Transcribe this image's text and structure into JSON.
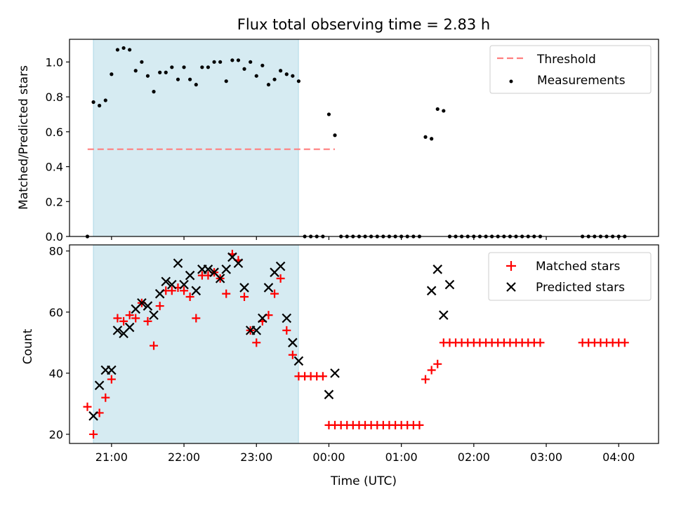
{
  "chart_data": [
    {
      "type": "scatter",
      "title": "Flux total observing time = 2.83 h",
      "ylabel": "Matched/Predicted stars",
      "xlabel": "",
      "ylim": [
        0,
        1.13
      ],
      "yticks": [
        "0.0",
        "0.2",
        "0.4",
        "0.6",
        "0.8",
        "1.0"
      ],
      "grid": false,
      "legend_position": "top-right",
      "shaded_region": {
        "x_start": 20.75,
        "x_end": 23.58,
        "color": "#add8e6"
      },
      "threshold": {
        "name": "Threshold",
        "value": 0.5,
        "x_start": 20.67,
        "x_end": 24.083,
        "color": "#ff7f7f"
      },
      "series": [
        {
          "name": "Measurements",
          "color": "#000000",
          "x": [
            20.667,
            20.75,
            20.833,
            20.917,
            21.0,
            21.083,
            21.167,
            21.25,
            21.333,
            21.417,
            21.5,
            21.583,
            21.667,
            21.75,
            21.833,
            21.917,
            22.0,
            22.083,
            22.167,
            22.25,
            22.333,
            22.417,
            22.5,
            22.583,
            22.667,
            22.75,
            22.833,
            22.917,
            23.0,
            23.083,
            23.167,
            23.25,
            23.333,
            23.417,
            23.5,
            23.583,
            23.667,
            23.75,
            23.833,
            23.917,
            24.0,
            24.083,
            24.167,
            24.25,
            24.333,
            24.417,
            24.5,
            24.583,
            24.667,
            24.75,
            24.833,
            24.917,
            25.0,
            25.083,
            25.167,
            25.25,
            25.333,
            25.417,
            25.5,
            25.583,
            25.667,
            25.75,
            25.833,
            25.917,
            26.0,
            26.083,
            26.167,
            26.25,
            26.333,
            26.417,
            26.5,
            26.583,
            26.667,
            26.75,
            26.833,
            26.917,
            27.5,
            27.583,
            27.667,
            27.75,
            27.833,
            27.917,
            28.0,
            28.083
          ],
          "y": [
            0.0,
            0.77,
            0.75,
            0.78,
            0.93,
            1.07,
            1.08,
            1.07,
            0.95,
            1.0,
            0.92,
            0.83,
            0.94,
            0.94,
            0.97,
            0.9,
            0.97,
            0.9,
            0.87,
            0.97,
            0.97,
            1.0,
            1.0,
            0.89,
            1.01,
            1.01,
            0.96,
            1.0,
            0.92,
            0.98,
            0.87,
            0.9,
            0.95,
            0.93,
            0.92,
            0.89,
            0.0,
            0.0,
            0.0,
            0.0,
            0.7,
            0.58,
            0.0,
            0.0,
            0.0,
            0.0,
            0.0,
            0.0,
            0.0,
            0.0,
            0.0,
            0.0,
            0.0,
            0.0,
            0.0,
            0.0,
            0.57,
            0.56,
            0.73,
            0.72,
            0.0,
            0.0,
            0.0,
            0.0,
            0.0,
            0.0,
            0.0,
            0.0,
            0.0,
            0.0,
            0.0,
            0.0,
            0.0,
            0.0,
            0.0,
            0.0,
            0.0,
            0.0,
            0.0,
            0.0,
            0.0,
            0.0,
            0.0,
            0.0
          ]
        }
      ]
    },
    {
      "type": "scatter",
      "title": "",
      "xlabel": "Time (UTC)",
      "ylabel": "Count",
      "ylim": [
        17,
        82
      ],
      "yticks": [
        "20",
        "40",
        "60",
        "80"
      ],
      "xticks": [
        "21:00",
        "22:00",
        "23:00",
        "00:00",
        "01:00",
        "02:00",
        "03:00",
        "04:00"
      ],
      "grid": false,
      "legend_position": "top-right",
      "shaded_region": {
        "x_start": 20.75,
        "x_end": 23.58,
        "color": "#add8e6"
      },
      "series": [
        {
          "name": "Matched stars",
          "marker": "plus",
          "color": "#ff0000",
          "x": [
            20.667,
            20.75,
            20.833,
            20.917,
            21.0,
            21.083,
            21.167,
            21.25,
            21.333,
            21.417,
            21.5,
            21.583,
            21.667,
            21.75,
            21.833,
            21.917,
            22.0,
            22.083,
            22.167,
            22.25,
            22.333,
            22.417,
            22.5,
            22.583,
            22.667,
            22.75,
            22.833,
            22.917,
            23.0,
            23.083,
            23.167,
            23.25,
            23.333,
            23.417,
            23.5,
            23.583,
            23.667,
            23.75,
            23.833,
            23.917,
            24.0,
            24.083,
            24.167,
            24.25,
            24.333,
            24.417,
            24.5,
            24.583,
            24.667,
            24.75,
            24.833,
            24.917,
            25.0,
            25.083,
            25.167,
            25.25,
            25.333,
            25.417,
            25.5,
            25.583,
            25.667,
            25.75,
            25.833,
            25.917,
            26.0,
            26.083,
            26.167,
            26.25,
            26.333,
            26.417,
            26.5,
            26.583,
            26.667,
            26.75,
            26.833,
            26.917,
            27.5,
            27.583,
            27.667,
            27.75,
            27.833,
            27.917,
            28.0,
            28.083
          ],
          "y": [
            29,
            20,
            27,
            32,
            38,
            58,
            57,
            59,
            58,
            63,
            57,
            49,
            62,
            67,
            67,
            68,
            67,
            65,
            58,
            72,
            72,
            73,
            71,
            66,
            79,
            77,
            65,
            54,
            50,
            57,
            59,
            66,
            71,
            54,
            46,
            39,
            39,
            39,
            39,
            39,
            23,
            23,
            23,
            23,
            23,
            23,
            23,
            23,
            23,
            23,
            23,
            23,
            23,
            23,
            23,
            23,
            38,
            41,
            43,
            50,
            50,
            50,
            50,
            50,
            50,
            50,
            50,
            50,
            50,
            50,
            50,
            50,
            50,
            50,
            50,
            50,
            50,
            50,
            50,
            50,
            50,
            50,
            50,
            50
          ]
        },
        {
          "name": "Predicted stars",
          "marker": "x",
          "color": "#000000",
          "x": [
            20.75,
            20.833,
            20.917,
            21.0,
            21.083,
            21.167,
            21.25,
            21.333,
            21.417,
            21.5,
            21.583,
            21.667,
            21.75,
            21.833,
            21.917,
            22.0,
            22.083,
            22.167,
            22.25,
            22.333,
            22.417,
            22.5,
            22.583,
            22.667,
            22.75,
            22.833,
            22.917,
            23.0,
            23.083,
            23.167,
            23.25,
            23.333,
            23.417,
            23.5,
            23.583,
            24.0,
            24.083,
            25.417,
            25.5,
            25.583,
            25.667
          ],
          "y": [
            26,
            36,
            41,
            41,
            54,
            53,
            55,
            61,
            63,
            62,
            59,
            66,
            70,
            69,
            76,
            69,
            72,
            67,
            74,
            74,
            73,
            71,
            74,
            78,
            76,
            68,
            54,
            54,
            58,
            68,
            73,
            75,
            58,
            50,
            44,
            33,
            40,
            67,
            74,
            59,
            69
          ]
        }
      ]
    }
  ]
}
